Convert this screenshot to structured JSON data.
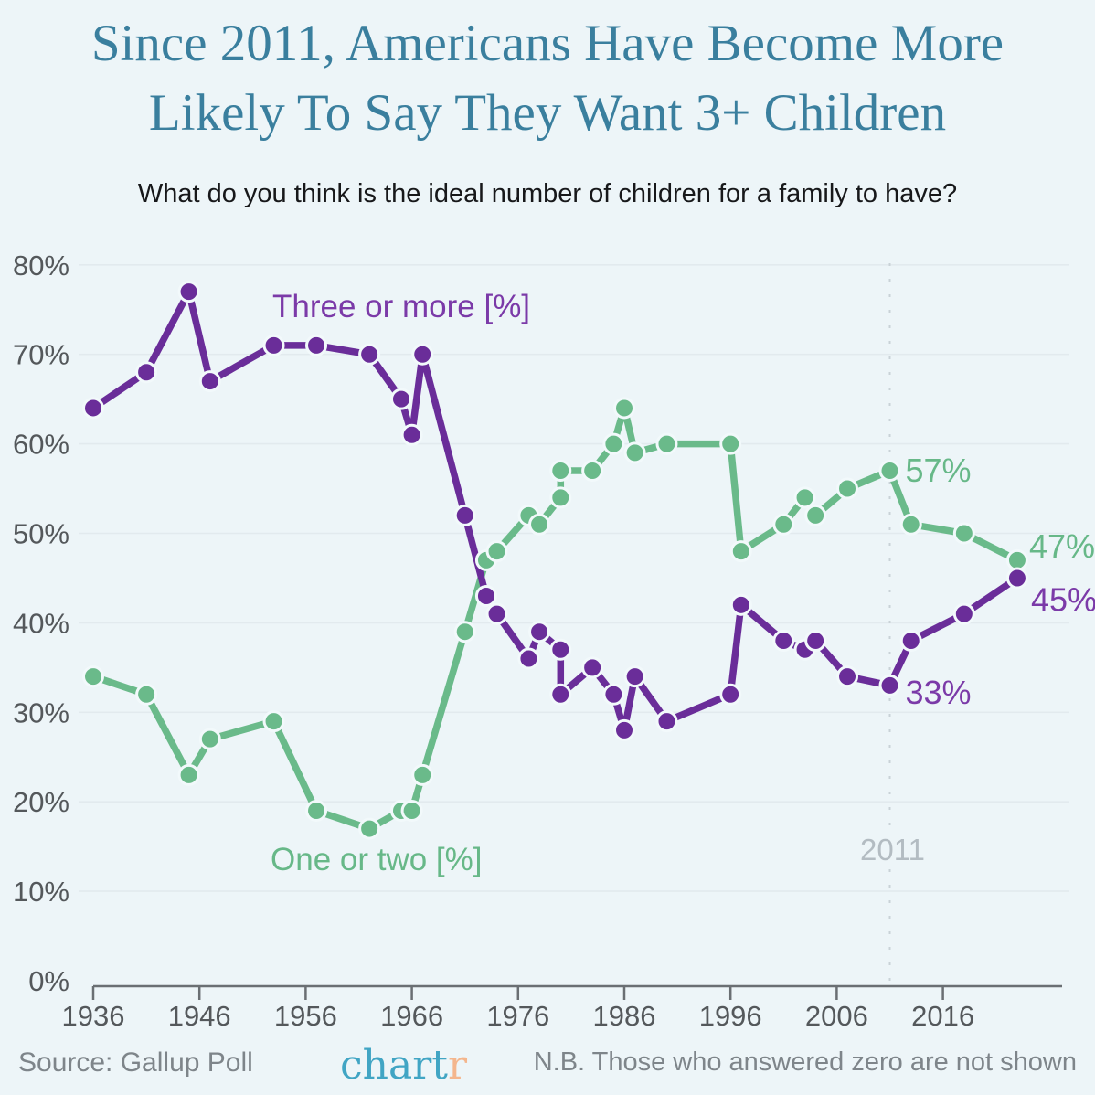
{
  "title": {
    "line1": "Since 2011, Americans Have Become More",
    "line2": "Likely To Say They Want 3+ Children"
  },
  "subtitle": "What do you think is the ideal number of children for a family to have?",
  "footer": {
    "source": "Source: Gallup Poll",
    "note": "N.B. Those who answered zero are not shown",
    "logo": {
      "part1": "chart",
      "part2": "r"
    }
  },
  "colors": {
    "background": "#edf5f8",
    "title_teal": "#3a7f9e",
    "purple": "#6a2d99",
    "purple_label": "#7b3aa8",
    "green": "#6aba8a",
    "green_label": "#67b888",
    "gridline": "#e2eaee",
    "dashed_line": "#c9d2d7",
    "axis": "#6a6f73",
    "tick_label": "#54585b",
    "annotation_gray": "#b3bcc2",
    "marker_stroke": "#f2f9fb",
    "logo_teal": "#41a5c4",
    "logo_orange": "#f4b68d"
  },
  "chart_data": {
    "type": "line",
    "x": [
      1936,
      1941,
      1945,
      1947,
      1953,
      1957,
      1962,
      1965,
      1966,
      1967,
      1971,
      1973,
      1974,
      1977,
      1978,
      1980,
      1980,
      1983,
      1985,
      1986,
      1987,
      1990,
      1996,
      1997,
      2001,
      2003,
      2004,
      2007,
      2011,
      2013,
      2018,
      2023
    ],
    "series": [
      {
        "name": "Three or more [%]",
        "color": "#6a2d99",
        "label_color": "#7b3aa8",
        "values": [
          64,
          68,
          77,
          67,
          71,
          71,
          70,
          65,
          61,
          70,
          52,
          43,
          41,
          36,
          39,
          37,
          32,
          35,
          32,
          28,
          34,
          29,
          32,
          42,
          38,
          37,
          38,
          34,
          33,
          38,
          41,
          45
        ]
      },
      {
        "name": "One or two [%]",
        "color": "#6aba8a",
        "label_color": "#67b888",
        "values": [
          34,
          32,
          23,
          27,
          29,
          19,
          17,
          19,
          19,
          23,
          39,
          47,
          48,
          52,
          51,
          54,
          57,
          57,
          60,
          64,
          59,
          60,
          60,
          48,
          51,
          54,
          52,
          55,
          57,
          51,
          50,
          47
        ]
      }
    ],
    "xticks": [
      1936,
      1946,
      1956,
      1966,
      1976,
      1986,
      1996,
      2006,
      2016
    ],
    "yticks": [
      "0%",
      "10%",
      "20%",
      "30%",
      "40%",
      "50%",
      "60%",
      "70%",
      "80%"
    ],
    "ylim": [
      0,
      80
    ],
    "xlim": [
      1936,
      2023
    ],
    "grid": true,
    "legend_position": "inline-labels",
    "vline": {
      "year": 2011,
      "label": "2011"
    },
    "annotations": [
      {
        "text": "57%",
        "series": "One or two [%]",
        "year": 2011,
        "value": 57
      },
      {
        "text": "47%",
        "series": "One or two [%]",
        "year": 2023,
        "value": 47
      },
      {
        "text": "45%",
        "series": "Three or more [%]",
        "year": 2023,
        "value": 45
      },
      {
        "text": "33%",
        "series": "Three or more [%]",
        "year": 2011,
        "value": 33
      }
    ]
  }
}
